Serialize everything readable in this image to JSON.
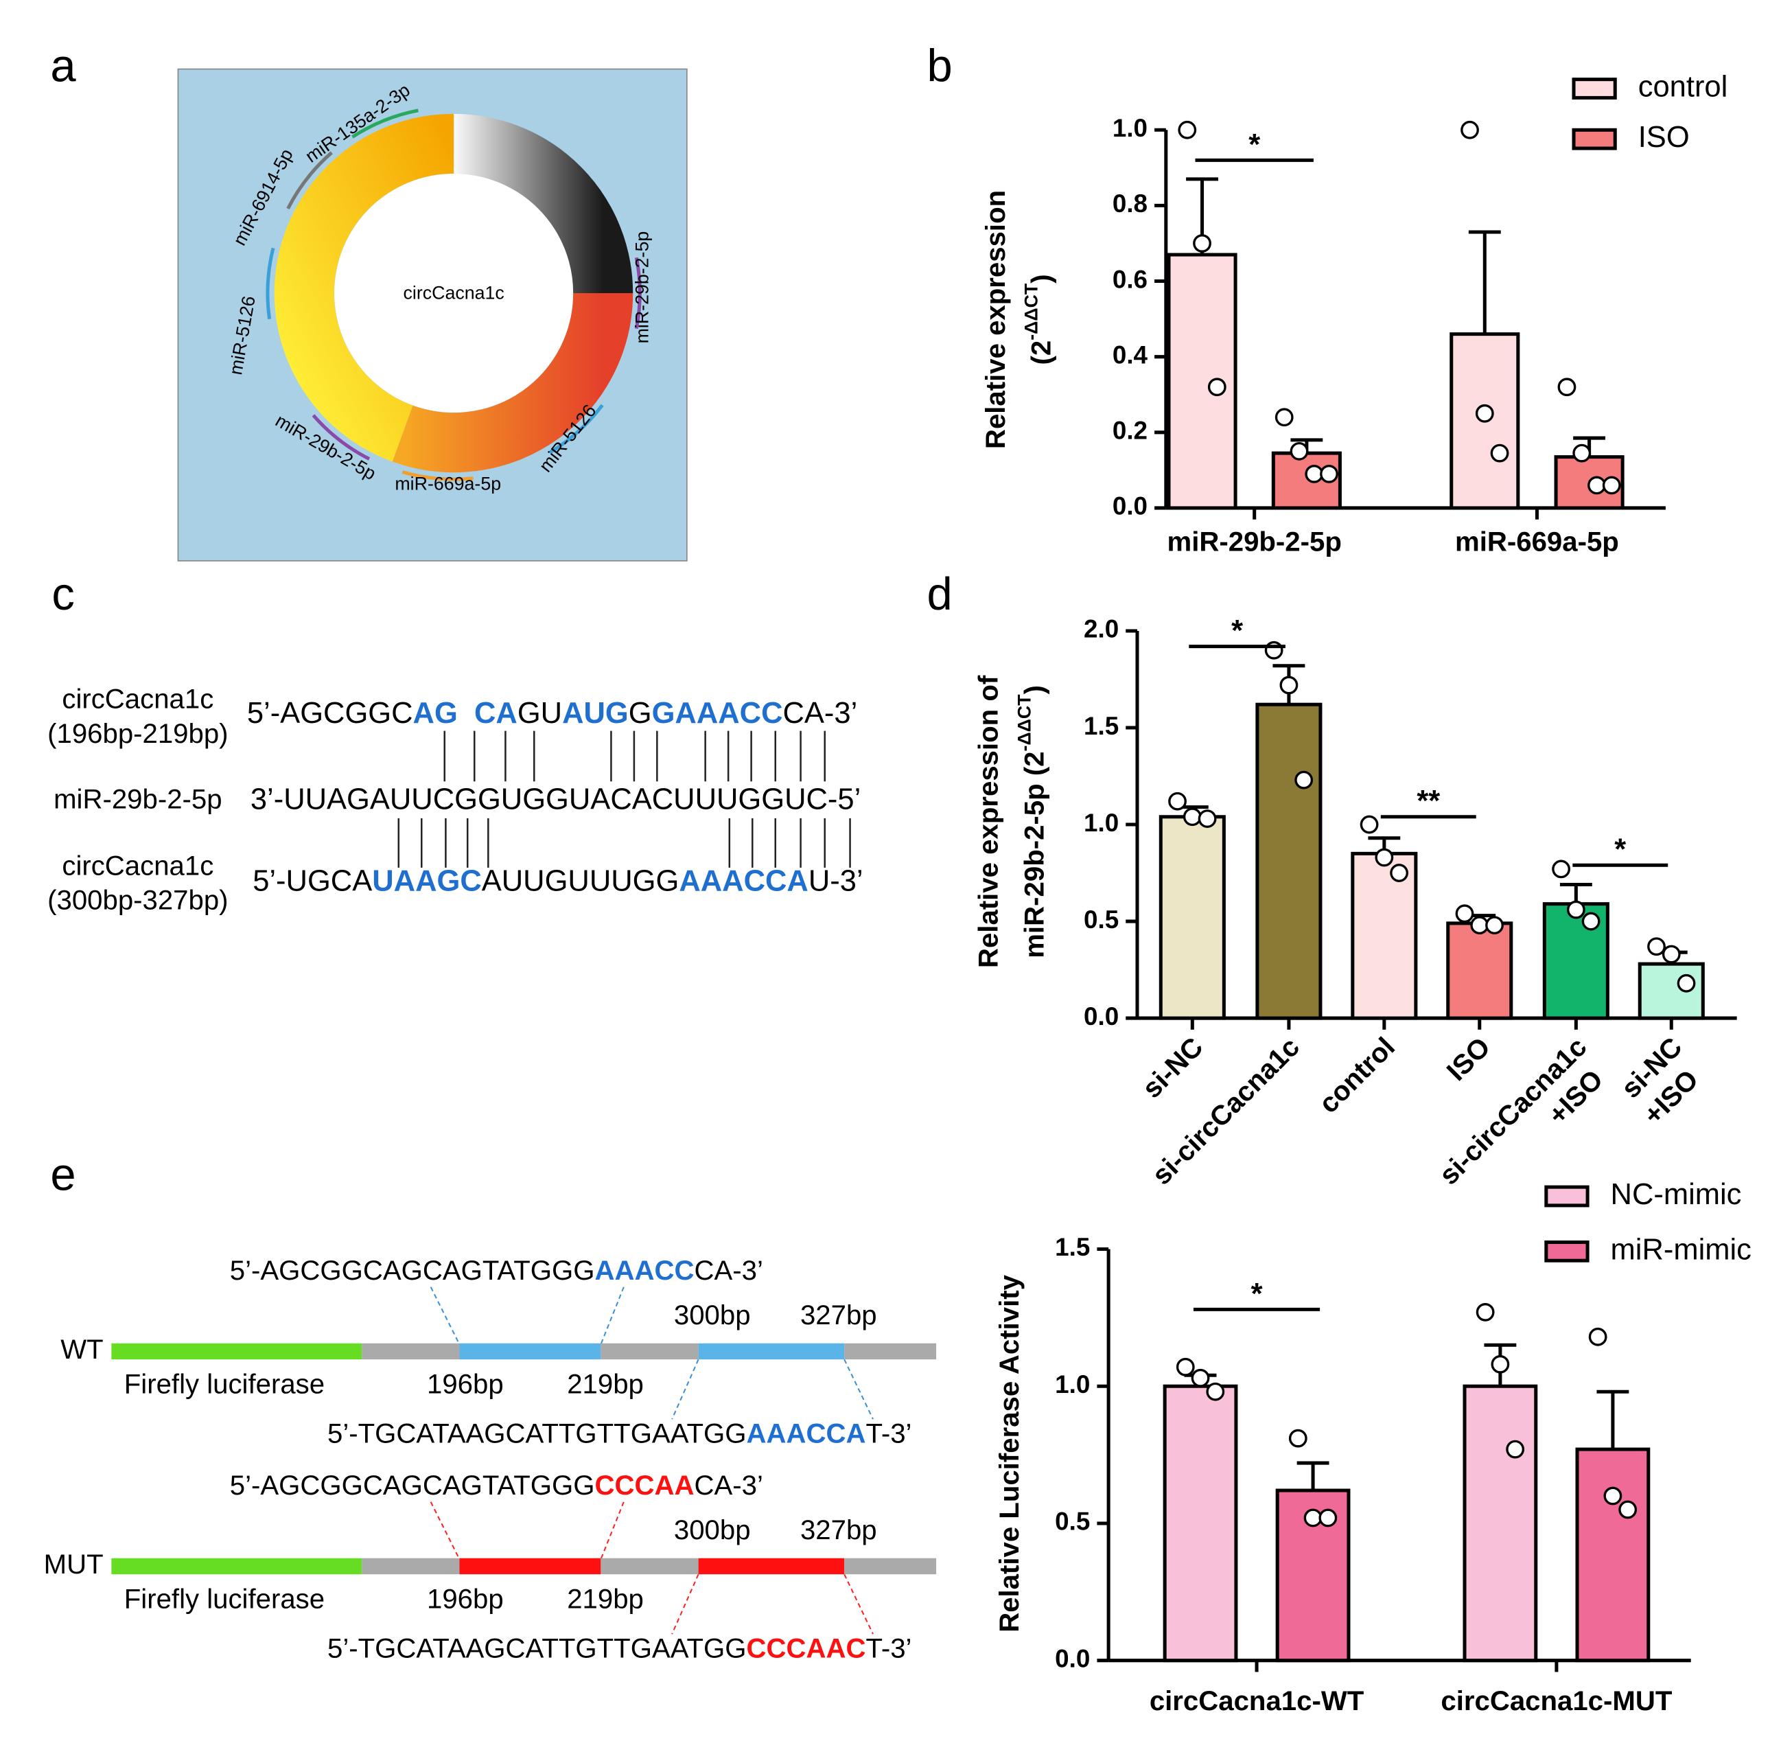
{
  "panel_labels": [
    "a",
    "b",
    "c",
    "d",
    "e"
  ],
  "circ_diagram": {
    "center": "circCacna1c",
    "sites": [
      {
        "name": "miR-135a-2-3p",
        "color": "#2aa860"
      },
      {
        "name": "miR-6914-5p",
        "color": "#777777"
      },
      {
        "name": "miR-5126",
        "color": "#3aa0d8"
      },
      {
        "name": "miR-29b-2-5p",
        "color": "#8a4aa8"
      },
      {
        "name": "miR-669a-5p",
        "color": "#f0a030"
      },
      {
        "name": "miR-5126",
        "color": "#3aa0d8"
      },
      {
        "name": "miR-29b-2-5p",
        "color": "#8a4aa8"
      }
    ]
  },
  "sequences": {
    "highlight_color": "#1f6fd0",
    "rows": [
      {
        "label": [
          "circCacna1c",
          "(196bp-219bp)"
        ],
        "segments": [
          {
            "text": "5’-AGCGGC",
            "hl": false
          },
          {
            "text": "AG",
            "hl": true
          },
          {
            "text": "  ",
            "hl": false
          },
          {
            "text": "CA",
            "hl": true
          },
          {
            "text": "GU",
            "hl": false
          },
          {
            "text": "AUG",
            "hl": true
          },
          {
            "text": "G",
            "hl": false
          },
          {
            "text": "GAAACC",
            "hl": true
          },
          {
            "text": "CA-3’",
            "hl": false
          }
        ]
      },
      {
        "label": [
          "miR-29b-2-5p"
        ],
        "segments": [
          {
            "text": "3’-UUAGAUUCGGUGGUACACUUUGGUC-5’",
            "hl": false
          }
        ]
      },
      {
        "label": [
          "circCacna1c",
          "(300bp-327bp)"
        ],
        "segments": [
          {
            "text": "5’-UGCA",
            "hl": false
          },
          {
            "text": "UAAGC",
            "hl": true
          },
          {
            "text": "AUUGUUUGG",
            "hl": false
          },
          {
            "text": "AAACCA",
            "hl": true
          },
          {
            "text": "U-3’",
            "hl": false
          }
        ]
      }
    ]
  },
  "constructs": [
    {
      "name": "WT",
      "color": "#5ab4e8",
      "gene": "Firefly luciferase",
      "sites": [
        "196bp",
        "219bp",
        "300bp",
        "327bp"
      ],
      "top_seq": [
        {
          "text": "5’-AGCGGCAGCAGTATGGG",
          "hl": false
        },
        {
          "text": "AAACC",
          "hl": true
        },
        {
          "text": "CA-3’",
          "hl": false
        }
      ],
      "bottom_seq": [
        {
          "text": "5’-TGCATAAGCATTGTTGAATGG",
          "hl": false
        },
        {
          "text": "AAACCA",
          "hl": true
        },
        {
          "text": "T-3’",
          "hl": false
        }
      ]
    },
    {
      "name": "MUT",
      "color": "#ff1010",
      "gene": "Firefly luciferase",
      "sites": [
        "196bp",
        "219bp",
        "300bp",
        "327bp"
      ],
      "top_seq": [
        {
          "text": "5’-AGCGGCAGCAGTATGGG",
          "hl": false
        },
        {
          "text": "CCCAA",
          "hl": true
        },
        {
          "text": "CA-3’",
          "hl": false
        }
      ],
      "bottom_seq": [
        {
          "text": "5’-TGCATAAGCATTGTTGAATGG",
          "hl": false
        },
        {
          "text": "CCCAAC",
          "hl": true
        },
        {
          "text": "T-3’",
          "hl": false
        }
      ]
    }
  ],
  "chart_data": [
    {
      "type": "bar",
      "categories": [
        "miR-29b-2-5p",
        "miR-669a-5p"
      ],
      "y_label": [
        [
          "Relative expression"
        ],
        [
          "(2",
          "-ΔΔCT",
          ")"
        ]
      ],
      "series": [
        {
          "name": "control",
          "color": "#fddde0",
          "values": [
            0.67,
            0.46
          ],
          "errors": [
            0.2,
            0.27
          ],
          "points": [
            [
              1.0,
              0.7,
              0.32
            ],
            [
              1.0,
              0.25,
              0.145
            ]
          ]
        },
        {
          "name": "ISO",
          "color": "#f47c7c",
          "values": [
            0.145,
            0.135
          ],
          "errors": [
            0.035,
            0.05
          ],
          "points": [
            [
              0.24,
              0.15,
              0.09,
              0.09
            ],
            [
              0.32,
              0.145,
              0.06,
              0.06
            ]
          ]
        }
      ],
      "ylim": [
        0,
        1.0
      ],
      "yticks": [
        {
          "value": 0,
          "label": "0.0"
        },
        0.2,
        0.4,
        0.6,
        0.8,
        {
          "value": 1.0,
          "label": "1.0"
        }
      ],
      "legend": "top-right",
      "significance": [
        {
          "label": "*",
          "y": 0.92
        }
      ]
    },
    {
      "type": "bar",
      "categories": [
        [
          "si-NC"
        ],
        [
          "si-circCacna1c"
        ],
        [
          "control"
        ],
        [
          "ISO"
        ],
        [
          "si-circCacna1c",
          "+ISO"
        ],
        [
          "si-NC",
          "+ISO"
        ]
      ],
      "y_label": [
        [
          "Relative expression of"
        ],
        [
          "miR-29b-2-5p (2",
          "-ΔΔCT",
          ")"
        ]
      ],
      "series": [
        {
          "colors": [
            "#ece5c6",
            "#8a7a36",
            "#fde0e0",
            "#f47c7c",
            "#12b36a",
            "#b9f4dc"
          ],
          "values": [
            1.04,
            1.62,
            0.85,
            0.49,
            0.59,
            0.28
          ],
          "errors": [
            0.05,
            0.2,
            0.08,
            0.04,
            0.1,
            0.06
          ],
          "points": [
            [
              1.12,
              1.04,
              1.03
            ],
            [
              1.9,
              1.72,
              1.23
            ],
            [
              1.0,
              0.83,
              0.75
            ],
            [
              0.54,
              0.48,
              0.48
            ],
            [
              0.77,
              0.56,
              0.5
            ],
            [
              0.37,
              0.33,
              0.18
            ]
          ]
        }
      ],
      "ylim": [
        0,
        2.0
      ],
      "yticks": [
        {
          "value": 0,
          "label": "0.0"
        },
        0.5,
        {
          "value": 1.0,
          "label": "1.0"
        },
        1.5,
        {
          "value": 2.0,
          "label": "2.0"
        }
      ],
      "significance": [
        {
          "label": "*",
          "y": 1.92
        },
        {
          "label": "**",
          "y": 1.04
        },
        {
          "label": "*",
          "y": 0.79
        }
      ]
    },
    {
      "type": "bar",
      "categories": [
        "circCacna1c-WT",
        "circCacna1c-MUT"
      ],
      "y_label": [
        [
          "Relative Luciferase Activity"
        ]
      ],
      "series": [
        {
          "name": "NC-mimic",
          "color": "#f9c0da",
          "values": [
            1.0,
            1.0
          ],
          "errors": [
            0.04,
            0.15
          ],
          "points": [
            [
              1.07,
              1.03,
              0.98
            ],
            [
              1.27,
              1.08,
              0.77
            ]
          ]
        },
        {
          "name": "miR-mimic",
          "color": "#f06a98",
          "values": [
            0.62,
            0.77
          ],
          "errors": [
            0.1,
            0.21
          ],
          "points": [
            [
              0.81,
              0.52,
              0.52
            ],
            [
              1.18,
              0.6,
              0.55
            ]
          ]
        }
      ],
      "ylim": [
        0,
        1.5
      ],
      "yticks": [
        {
          "value": 0,
          "label": "0.0"
        },
        0.5,
        {
          "value": 1.0,
          "label": "1.0"
        },
        1.5
      ],
      "legend": "top-right",
      "significance": [
        {
          "label": "*",
          "y": 1.28
        }
      ]
    }
  ]
}
